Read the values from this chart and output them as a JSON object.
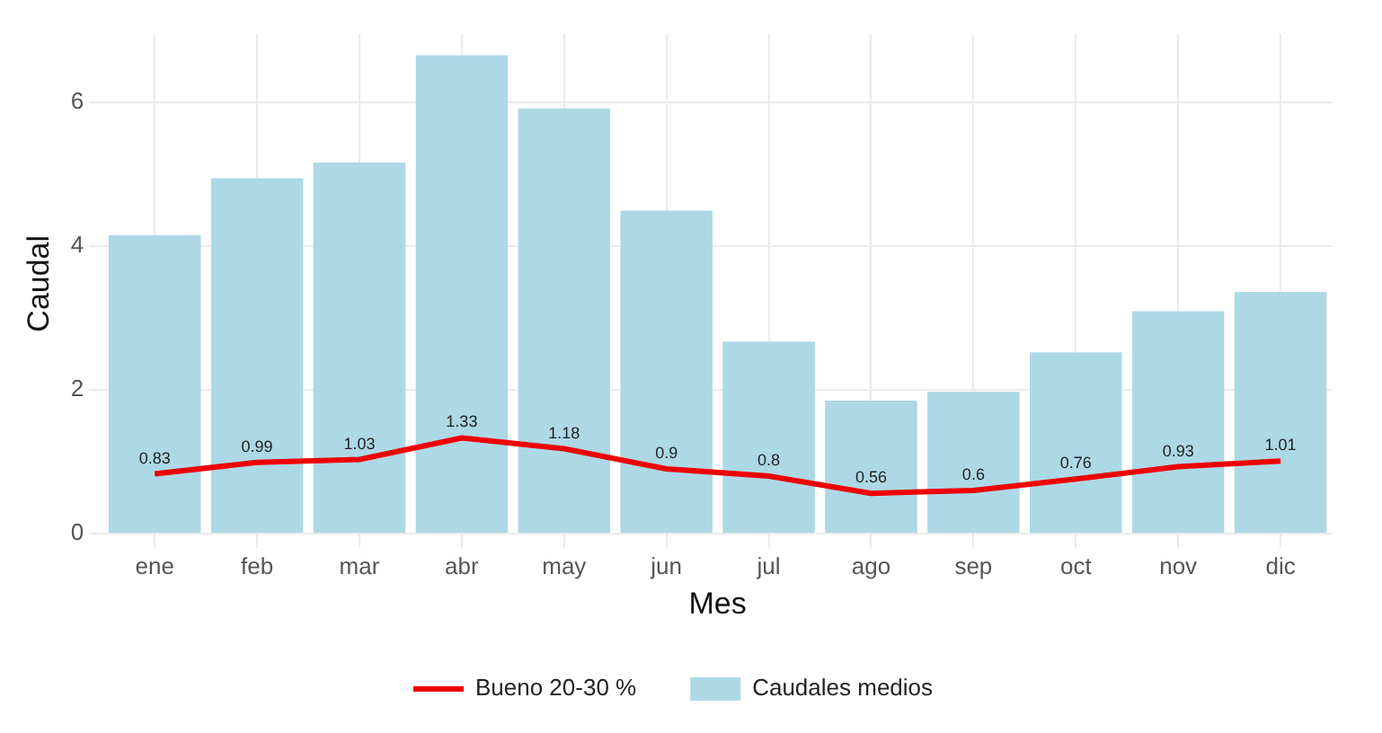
{
  "chart_data": {
    "type": "bar",
    "xlabel": "Mes",
    "ylabel": "Caudal",
    "categories": [
      "ene",
      "feb",
      "mar",
      "abr",
      "may",
      "jun",
      "jul",
      "ago",
      "sep",
      "oct",
      "nov",
      "dic"
    ],
    "series": [
      {
        "name": "Bueno 20-30 %",
        "type": "line",
        "color": "#ee0000",
        "values": [
          0.83,
          0.99,
          1.03,
          1.33,
          1.18,
          0.9,
          0.8,
          0.56,
          0.6,
          0.76,
          0.93,
          1.01
        ],
        "value_labels": [
          "0.83",
          "0.99",
          "1.03",
          "1.33",
          "1.18",
          "0.9",
          "0.8",
          "0.56",
          "0.6",
          "0.76",
          "0.93",
          "1.01"
        ]
      },
      {
        "name": "Caudales medios",
        "color": "#add8e6",
        "values": [
          4.15,
          4.94,
          5.16,
          6.65,
          5.91,
          4.49,
          2.67,
          1.85,
          1.97,
          2.52,
          3.09,
          3.36
        ]
      }
    ],
    "ylim": [
      0,
      6.95
    ],
    "yticks": [
      0,
      2,
      4,
      6
    ],
    "grid": true,
    "legend": "bottom",
    "marker": "none",
    "line_style": "solid"
  }
}
